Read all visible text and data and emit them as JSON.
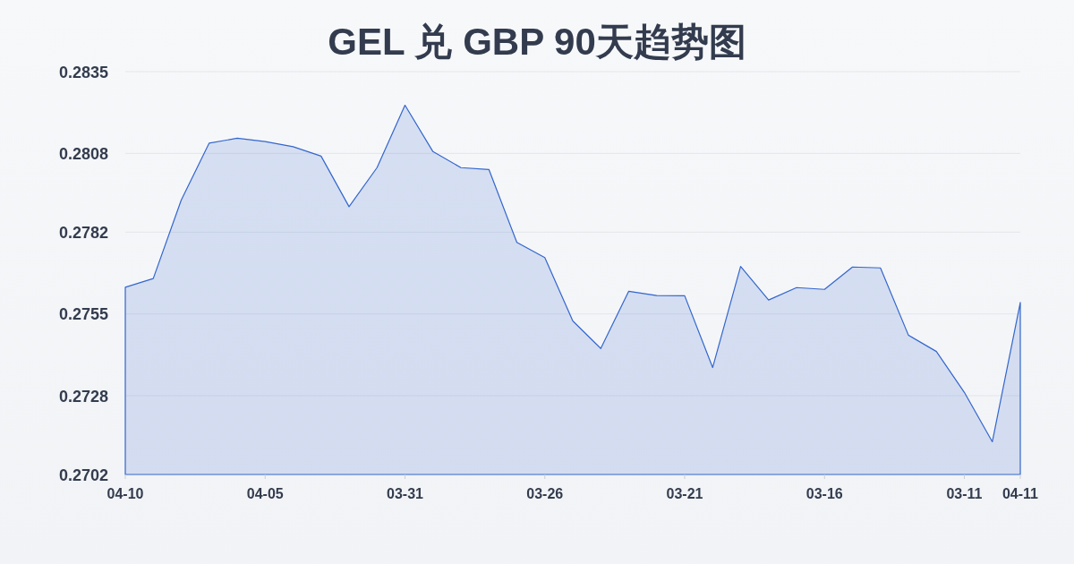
{
  "chart_data": {
    "type": "area",
    "title": "GEL 兑 GBP 90天趋势图",
    "categories": [
      "04-10",
      null,
      null,
      null,
      null,
      "04-05",
      null,
      null,
      null,
      null,
      "03-31",
      null,
      null,
      null,
      null,
      "03-26",
      null,
      null,
      null,
      null,
      "03-21",
      null,
      null,
      null,
      null,
      "03-16",
      null,
      null,
      null,
      null,
      "03-11",
      null,
      "04-11"
    ],
    "series": [
      {
        "color": "#3366cc",
        "values": [
          0.27638,
          0.27667,
          0.27926,
          0.28114,
          0.2813,
          0.28119,
          0.28102,
          0.28071,
          0.27904,
          0.28033,
          0.28239,
          0.28086,
          0.28033,
          0.28027,
          0.27786,
          0.27736,
          0.27527,
          0.27436,
          0.27625,
          0.27611,
          0.2761,
          0.27373,
          0.27707,
          0.27596,
          0.27637,
          0.27631,
          0.27705,
          0.27702,
          0.2748,
          0.27426,
          0.27291,
          0.27128,
          0.27588
        ]
      }
    ],
    "ylim": [
      0.2702,
      0.2835
    ],
    "yticks": [
      0.2702,
      0.2728,
      0.2755,
      0.2782,
      0.2808,
      0.2835
    ],
    "grid": "y"
  }
}
